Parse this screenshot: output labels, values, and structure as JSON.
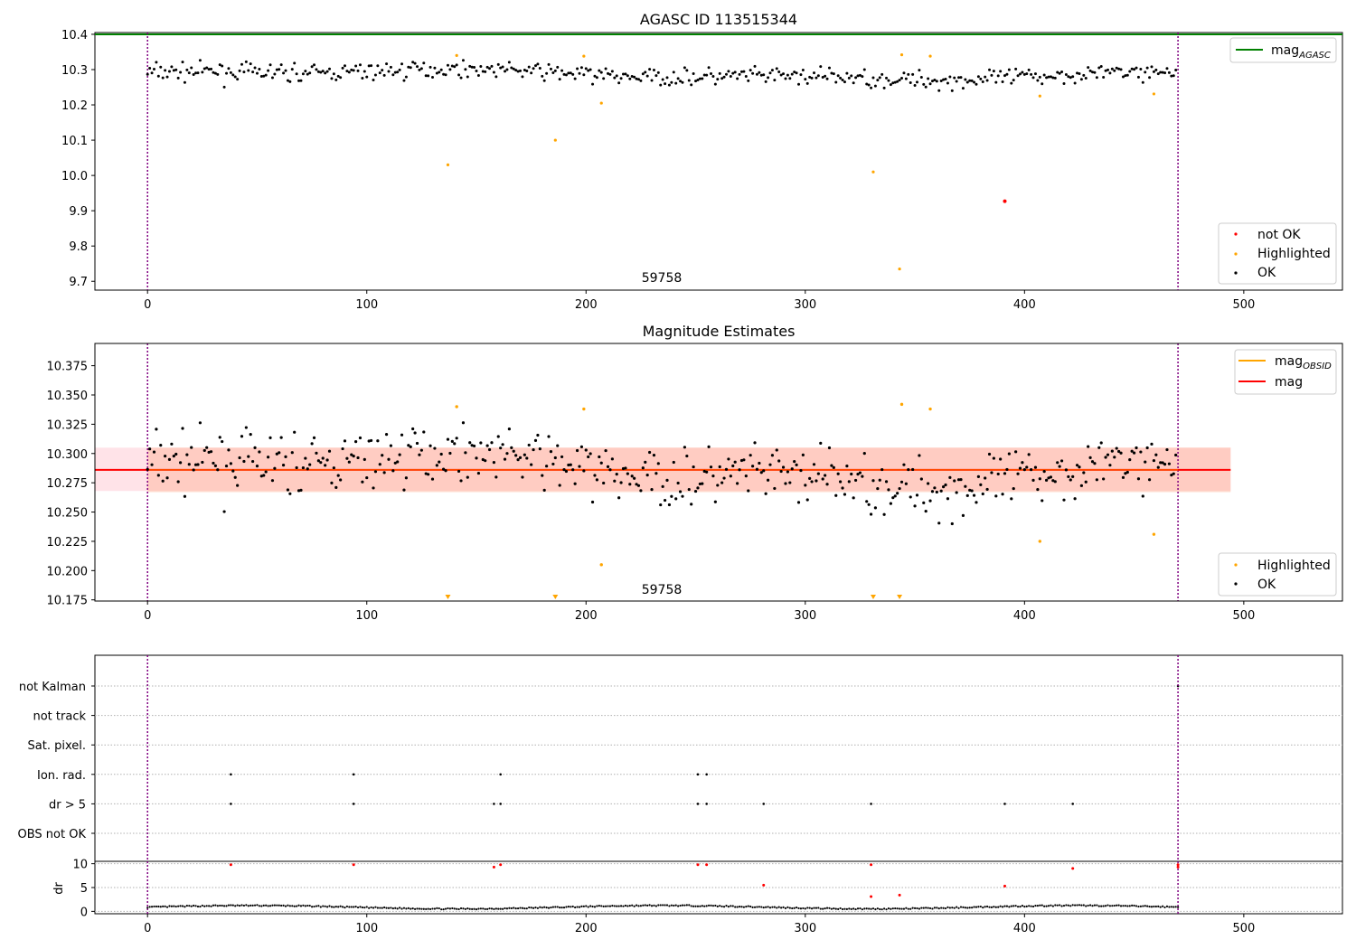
{
  "panel1": {
    "title": "AGASC ID 113515344",
    "annotation": "59758",
    "xlim": [
      -24,
      545
    ],
    "ylim": [
      9.675,
      10.405
    ],
    "xticks": [
      0,
      100,
      200,
      300,
      400,
      500
    ],
    "yticks": [
      "9.7",
      "9.8",
      "9.9",
      "10.0",
      "10.1",
      "10.2",
      "10.3",
      "10.4"
    ],
    "ytick_values": [
      9.7,
      9.8,
      9.9,
      10.0,
      10.1,
      10.2,
      10.3,
      10.4
    ],
    "legend_top": {
      "main": "mag",
      "sub": "AGASC"
    },
    "legend_bottom": [
      "not OK",
      "Highlighted",
      "OK"
    ],
    "mag_agasc": 10.4,
    "obs_boundaries": [
      0,
      470
    ]
  },
  "panel2": {
    "title": "Magnitude Estimates",
    "annotation": "59758",
    "xlim": [
      -24,
      545
    ],
    "ylim": [
      10.174,
      10.394
    ],
    "xticks": [
      0,
      100,
      200,
      300,
      400,
      500
    ],
    "yticks": [
      "10.175",
      "10.200",
      "10.225",
      "10.250",
      "10.275",
      "10.300",
      "10.325",
      "10.350",
      "10.375"
    ],
    "ytick_values": [
      10.175,
      10.2,
      10.225,
      10.25,
      10.275,
      10.3,
      10.325,
      10.35,
      10.375
    ],
    "legend_top": [
      {
        "main": "mag",
        "sub": "OBSID"
      },
      {
        "main": "mag",
        "sub": ""
      }
    ],
    "legend_bottom": [
      "Highlighted",
      "OK"
    ],
    "mag": 10.286,
    "band_outer": [
      10.268,
      10.305
    ],
    "band_inner": [
      10.267,
      10.305
    ],
    "obs_boundaries": [
      0,
      470
    ]
  },
  "panel3": {
    "flags": [
      "not Kalman",
      "not track",
      "Sat. pixel.",
      "Ion. rad.",
      "dr > 5",
      "OBS not OK"
    ],
    "flag_points": {
      "Ion. rad.": [
        38,
        94,
        161,
        251,
        255
      ],
      "dr > 5": [
        38,
        94,
        158,
        161,
        251,
        255,
        281,
        330,
        391,
        422
      ],
      "not Kalman": [
        470
      ]
    },
    "dr_label": "dr",
    "dr_yticks": [
      "0",
      "5",
      "10"
    ],
    "dr_ytick_values": [
      0,
      5,
      10
    ],
    "dr_ylim": [
      -0.5,
      10.5
    ],
    "dr_red_points": [
      [
        38,
        9.8
      ],
      [
        94,
        9.8
      ],
      [
        158,
        9.3
      ],
      [
        161,
        9.8
      ],
      [
        251,
        9.8
      ],
      [
        255,
        9.8
      ],
      [
        281,
        5.5
      ],
      [
        330,
        9.8
      ],
      [
        330,
        3.1
      ],
      [
        343,
        3.4
      ],
      [
        391,
        5.3
      ],
      [
        422,
        9.0
      ],
      [
        470,
        9.8
      ],
      [
        470,
        9.3
      ]
    ],
    "xticks": [
      0,
      100,
      200,
      300,
      400,
      500
    ],
    "obs_boundaries": [
      0,
      470
    ]
  },
  "chart_data": {
    "type": "scatter",
    "title": "AGASC ID 113515344",
    "subtitle": "Magnitude Estimates",
    "obsid_annotation": "59758",
    "mag_agasc": 10.4,
    "mag_mean": 10.286,
    "highlighted": [
      [
        137,
        10.03
      ],
      [
        141,
        10.34
      ],
      [
        186,
        10.1
      ],
      [
        199,
        10.338
      ],
      [
        207,
        10.205
      ],
      [
        331,
        10.01
      ],
      [
        343,
        9.735
      ],
      [
        344,
        10.342
      ],
      [
        357,
        10.338
      ],
      [
        407,
        10.225
      ],
      [
        459,
        10.231
      ]
    ],
    "not_ok": [
      [
        391,
        9.927
      ]
    ],
    "ok_series_seed": 7,
    "ok_count": 470,
    "x_range": [
      0,
      470
    ],
    "colors": {
      "ok": "#000000",
      "highlighted": "#ffa500",
      "not_ok": "#ff0000",
      "agasc_line": "#008000",
      "mag_line": "#ff0000",
      "obsid_line": "#ffa500",
      "band_outer": "#ffc0cb",
      "band_inner": "#ffa07a",
      "boundary": "#800080"
    }
  }
}
